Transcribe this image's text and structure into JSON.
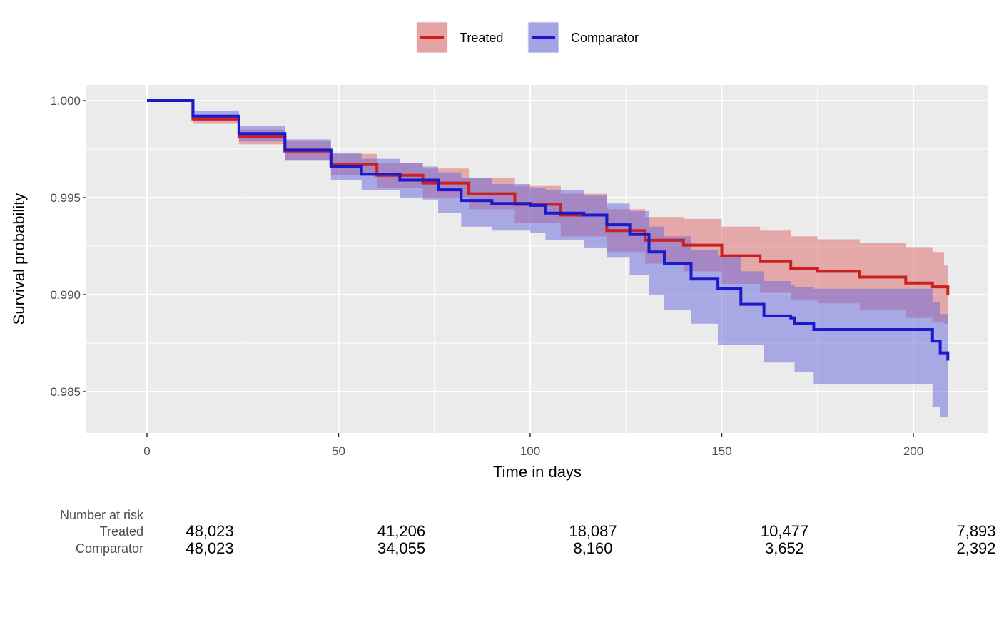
{
  "chart_data": {
    "type": "line",
    "subtype": "kaplan-meier survival curve with confidence bands",
    "title": "",
    "xlabel": "Time in days",
    "ylabel": "Survival probability",
    "xlim": [
      -15.5,
      220.5
    ],
    "ylim": [
      0.9832,
      1.0008
    ],
    "x_ticks": [
      0,
      50,
      100,
      150,
      200
    ],
    "x_tick_labels": [
      "0",
      "50",
      "100",
      "150",
      "200"
    ],
    "y_ticks": [
      0.985,
      0.99,
      0.995,
      1.0
    ],
    "y_tick_labels": [
      "0.985",
      "0.990",
      "0.995",
      "1.000"
    ],
    "grid": true,
    "legend": {
      "position": "top",
      "entries": [
        "Treated",
        "Comparator"
      ]
    },
    "series": [
      {
        "name": "Treated",
        "color": "#cc1f1f",
        "band_color": "#e06666",
        "x": [
          0,
          12,
          24,
          36,
          48,
          60,
          72,
          84,
          96,
          108,
          120,
          130,
          140,
          150,
          160,
          168,
          175,
          186,
          198,
          205,
          208,
          209
        ],
        "y": [
          1.0,
          0.99905,
          0.99815,
          0.9974,
          0.9967,
          0.99615,
          0.99575,
          0.9952,
          0.99465,
          0.9941,
          0.9933,
          0.9928,
          0.99255,
          0.992,
          0.9917,
          0.99135,
          0.9912,
          0.9909,
          0.9906,
          0.9904,
          0.9904,
          0.99
        ],
        "upper": [
          1.0,
          0.99925,
          0.9985,
          0.9979,
          0.99725,
          0.9968,
          0.9965,
          0.996,
          0.9956,
          0.9952,
          0.9944,
          0.994,
          0.9939,
          0.9935,
          0.9933,
          0.993,
          0.99285,
          0.99265,
          0.99245,
          0.9922,
          0.9915,
          0.9915
        ],
        "lower": [
          1.0,
          0.9988,
          0.99775,
          0.9969,
          0.99615,
          0.9955,
          0.995,
          0.9944,
          0.9937,
          0.993,
          0.9922,
          0.9916,
          0.9912,
          0.99055,
          0.9901,
          0.9897,
          0.98955,
          0.9892,
          0.9888,
          0.9886,
          0.9885,
          0.9885
        ]
      },
      {
        "name": "Comparator",
        "color": "#1a1acc",
        "band_color": "#6666dd",
        "x": [
          0,
          12,
          24,
          36,
          48,
          56,
          66,
          72,
          76,
          82,
          90,
          100,
          104,
          114,
          120,
          126,
          131,
          135,
          142,
          149,
          155,
          161,
          168,
          169,
          174,
          204,
          205,
          207,
          209
        ],
        "y": [
          1.0,
          0.9992,
          0.9983,
          0.99745,
          0.9966,
          0.9962,
          0.9959,
          0.9959,
          0.9954,
          0.99485,
          0.9947,
          0.9946,
          0.9942,
          0.9941,
          0.9936,
          0.9931,
          0.9922,
          0.9916,
          0.9908,
          0.9903,
          0.9895,
          0.9889,
          0.9888,
          0.9885,
          0.9882,
          0.9882,
          0.9876,
          0.987,
          0.9866
        ],
        "upper": [
          1.0,
          0.99945,
          0.9987,
          0.998,
          0.9973,
          0.997,
          0.9968,
          0.9966,
          0.9963,
          0.996,
          0.9957,
          0.9955,
          0.9954,
          0.9951,
          0.9947,
          0.9943,
          0.9935,
          0.993,
          0.9923,
          0.992,
          0.9912,
          0.9907,
          0.9905,
          0.9904,
          0.9903,
          0.9903,
          0.9896,
          0.989,
          0.9886
        ],
        "lower": [
          1.0,
          0.99895,
          0.9979,
          0.9969,
          0.9959,
          0.9954,
          0.995,
          0.9949,
          0.9942,
          0.9935,
          0.9933,
          0.9932,
          0.9928,
          0.9924,
          0.9919,
          0.991,
          0.99,
          0.9892,
          0.9885,
          0.9874,
          0.9874,
          0.9865,
          0.9865,
          0.986,
          0.9854,
          0.9854,
          0.9842,
          0.9837,
          0.9837
        ]
      }
    ],
    "risk_table": {
      "title": "Number at risk",
      "times": [
        0,
        50,
        100,
        150,
        200
      ],
      "rows": [
        {
          "label": "Treated",
          "values": [
            "48,023",
            "41,206",
            "18,087",
            "10,477",
            "7,893"
          ]
        },
        {
          "label": "Comparator",
          "values": [
            "48,023",
            "34,055",
            "8,160",
            "3,652",
            "2,392"
          ]
        }
      ]
    }
  }
}
